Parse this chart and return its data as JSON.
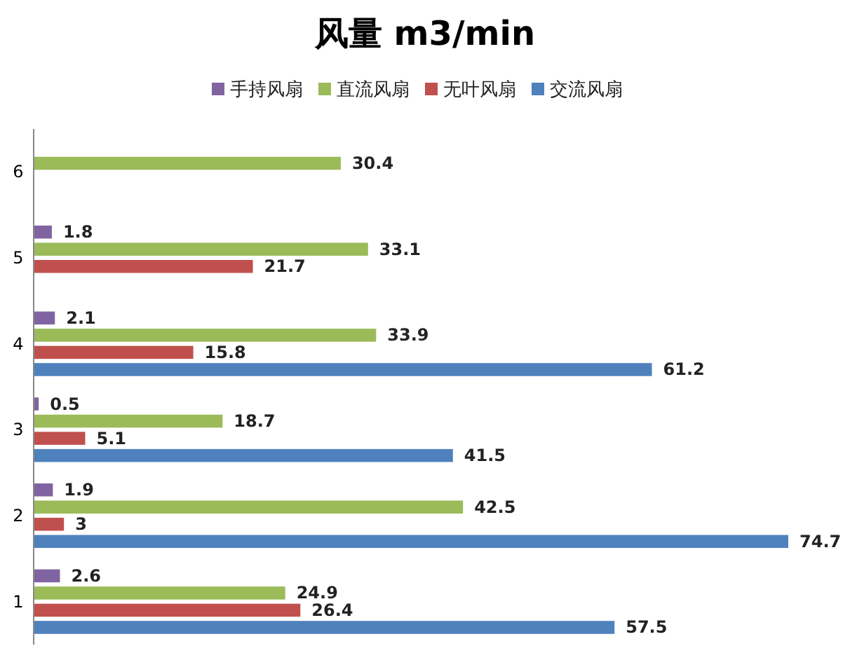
{
  "chart_data": {
    "type": "bar",
    "orientation": "horizontal",
    "title": "风量 m3/min",
    "categories": [
      "6",
      "5",
      "4",
      "3",
      "2",
      "1"
    ],
    "series": [
      {
        "name": "手持风扇",
        "color": "#8064a2",
        "values": [
          null,
          1.8,
          2.1,
          0.5,
          1.9,
          2.6
        ]
      },
      {
        "name": "直流风扇",
        "color": "#9bbb59",
        "values": [
          30.4,
          33.1,
          33.9,
          18.7,
          42.5,
          24.9
        ]
      },
      {
        "name": "无叶风扇",
        "color": "#c0504d",
        "values": [
          null,
          21.7,
          15.8,
          5.1,
          3,
          26.4
        ]
      },
      {
        "name": "交流风扇",
        "color": "#4f81bd",
        "values": [
          null,
          null,
          61.2,
          41.5,
          74.7,
          57.5
        ]
      }
    ],
    "data_labels": true,
    "legend": "top"
  }
}
